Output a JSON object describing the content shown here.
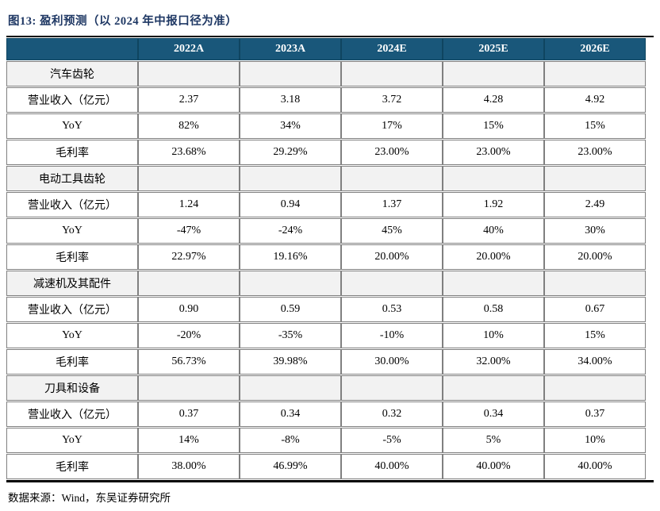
{
  "title": "图13:  盈利预测（以 2024 年中报口径为准）",
  "source": "数据来源：Wind，东吴证券研究所",
  "colors": {
    "header_bg": "#19577A",
    "header_text": "#FFFFFF",
    "title_text": "#1F3864",
    "section_bg": "#F2F2F2",
    "grid_line": "#808080",
    "rule_line": "#000000"
  },
  "chart_data": {
    "type": "table",
    "title": "图13:  盈利预测（以 2024 年中报口径为准）",
    "columns": [
      "",
      "2022A",
      "2023A",
      "2024E",
      "2025E",
      "2026E"
    ],
    "sections": [
      {
        "name": "汽车齿轮",
        "rows": [
          {
            "label": "营业收入（亿元）",
            "values": [
              "2.37",
              "3.18",
              "3.72",
              "4.28",
              "4.92"
            ]
          },
          {
            "label": "YoY",
            "values": [
              "82%",
              "34%",
              "17%",
              "15%",
              "15%"
            ]
          },
          {
            "label": "毛利率",
            "values": [
              "23.68%",
              "29.29%",
              "23.00%",
              "23.00%",
              "23.00%"
            ]
          }
        ]
      },
      {
        "name": "电动工具齿轮",
        "rows": [
          {
            "label": "营业收入（亿元）",
            "values": [
              "1.24",
              "0.94",
              "1.37",
              "1.92",
              "2.49"
            ]
          },
          {
            "label": "YoY",
            "values": [
              "-47%",
              "-24%",
              "45%",
              "40%",
              "30%"
            ]
          },
          {
            "label": "毛利率",
            "values": [
              "22.97%",
              "19.16%",
              "20.00%",
              "20.00%",
              "20.00%"
            ]
          }
        ]
      },
      {
        "name": "减速机及其配件",
        "rows": [
          {
            "label": "营业收入（亿元）",
            "values": [
              "0.90",
              "0.59",
              "0.53",
              "0.58",
              "0.67"
            ]
          },
          {
            "label": "YoY",
            "values": [
              "-20%",
              "-35%",
              "-10%",
              "10%",
              "15%"
            ]
          },
          {
            "label": "毛利率",
            "values": [
              "56.73%",
              "39.98%",
              "30.00%",
              "32.00%",
              "34.00%"
            ]
          }
        ]
      },
      {
        "name": "刀具和设备",
        "rows": [
          {
            "label": "营业收入（亿元）",
            "values": [
              "0.37",
              "0.34",
              "0.32",
              "0.34",
              "0.37"
            ]
          },
          {
            "label": "YoY",
            "values": [
              "14%",
              "-8%",
              "-5%",
              "5%",
              "10%"
            ]
          },
          {
            "label": "毛利率",
            "values": [
              "38.00%",
              "46.99%",
              "40.00%",
              "40.00%",
              "40.00%"
            ]
          }
        ]
      }
    ],
    "source": "数据来源：Wind，东吴证券研究所"
  }
}
